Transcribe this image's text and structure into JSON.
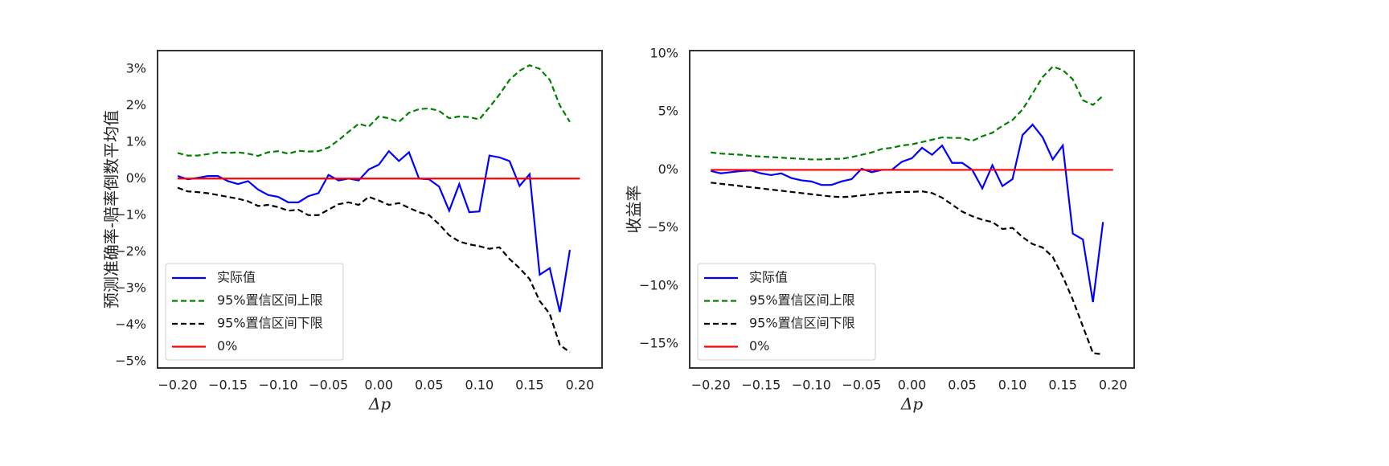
{
  "chart_data": [
    {
      "type": "line",
      "ylabel": "预测准确率-赔率倒数平均值",
      "xlabel": "Δp",
      "xlim": [
        -0.22,
        0.222
      ],
      "ylim": [
        -5.18,
        3.5
      ],
      "xticks": [
        {
          "value": -0.2,
          "label": "−0.20"
        },
        {
          "value": -0.15,
          "label": "−0.15"
        },
        {
          "value": -0.1,
          "label": "−0.10"
        },
        {
          "value": -0.05,
          "label": "−0.05"
        },
        {
          "value": 0,
          "label": "0.00"
        },
        {
          "value": 0.05,
          "label": "0.05"
        },
        {
          "value": 0.1,
          "label": "0.10"
        },
        {
          "value": 0.15,
          "label": "0.15"
        },
        {
          "value": 0.2,
          "label": "0.20"
        }
      ],
      "yticks": [
        {
          "value": 3,
          "label": "3%"
        },
        {
          "value": 2,
          "label": "2%"
        },
        {
          "value": 1,
          "label": "1%"
        },
        {
          "value": 0,
          "label": "0%"
        },
        {
          "value": -1,
          "label": "−1%"
        },
        {
          "value": -2,
          "label": "−2%"
        },
        {
          "value": -3,
          "label": "−3%"
        },
        {
          "value": -4,
          "label": "−4%"
        },
        {
          "value": -5,
          "label": "−5%"
        }
      ],
      "legend": "lower left",
      "grid": false,
      "x": [
        -0.2,
        -0.19,
        -0.18,
        -0.17,
        -0.16,
        -0.15,
        -0.14,
        -0.13,
        -0.12,
        -0.11,
        -0.1,
        -0.09,
        -0.08,
        -0.07,
        -0.06,
        -0.05,
        -0.04,
        -0.03,
        -0.02,
        -0.01,
        0,
        0.01,
        0.02,
        0.03,
        0.04,
        0.05,
        0.06,
        0.07,
        0.08,
        0.09,
        0.1,
        0.11,
        0.12,
        0.13,
        0.14,
        0.15,
        0.16,
        0.17,
        0.18,
        0.19
      ],
      "series": [
        {
          "name": "实际值",
          "color": "#0000ff",
          "linestyle": "solid",
          "values": [
            0.07,
            -0.02,
            0.02,
            0.07,
            0.07,
            -0.07,
            -0.15,
            -0.07,
            -0.3,
            -0.45,
            -0.5,
            -0.65,
            -0.65,
            -0.48,
            -0.4,
            0.1,
            -0.05,
            0.0,
            -0.05,
            0.25,
            0.38,
            0.75,
            0.48,
            0.72,
            0.0,
            -0.02,
            -0.22,
            -0.88,
            -0.15,
            -0.92,
            -0.9,
            0.63,
            0.58,
            0.48,
            -0.2,
            0.12,
            -2.63,
            -2.45,
            -3.65,
            -1.95
          ]
        },
        {
          "name": "95%置信区间上限",
          "color": "#008000",
          "linestyle": "dashed",
          "values": [
            0.7,
            0.63,
            0.63,
            0.67,
            0.72,
            0.7,
            0.72,
            0.68,
            0.62,
            0.72,
            0.75,
            0.68,
            0.76,
            0.74,
            0.75,
            0.85,
            1.05,
            1.28,
            1.5,
            1.42,
            1.7,
            1.65,
            1.55,
            1.8,
            1.9,
            1.92,
            1.85,
            1.65,
            1.7,
            1.68,
            1.62,
            1.95,
            2.3,
            2.7,
            2.95,
            3.1,
            3.0,
            2.7,
            2.0,
            1.55
          ]
        },
        {
          "name": "95%置信区间下限",
          "color": "#000000",
          "linestyle": "dashed",
          "values": [
            -0.25,
            -0.35,
            -0.37,
            -0.4,
            -0.45,
            -0.5,
            -0.55,
            -0.62,
            -0.75,
            -0.72,
            -0.78,
            -0.88,
            -0.85,
            -1.0,
            -1.0,
            -0.85,
            -0.7,
            -0.65,
            -0.72,
            -0.5,
            -0.6,
            -0.72,
            -0.67,
            -0.8,
            -0.92,
            -1.0,
            -1.25,
            -1.55,
            -1.72,
            -1.8,
            -1.85,
            -1.92,
            -1.88,
            -2.2,
            -2.45,
            -2.75,
            -3.35,
            -3.7,
            -4.55,
            -4.75
          ]
        },
        {
          "name": "0%",
          "color": "#ff0000",
          "linestyle": "solid",
          "x": [
            -0.2,
            0.2
          ],
          "values": [
            0,
            0
          ]
        }
      ]
    },
    {
      "type": "line",
      "ylabel": "收益率",
      "xlabel": "Δp",
      "xlim": [
        -0.221,
        0.221
      ],
      "ylim": [
        -17.08,
        10.28
      ],
      "xticks": [
        {
          "value": -0.2,
          "label": "−0.20"
        },
        {
          "value": -0.15,
          "label": "−0.15"
        },
        {
          "value": -0.1,
          "label": "−0.10"
        },
        {
          "value": -0.05,
          "label": "−0.05"
        },
        {
          "value": 0,
          "label": "0.00"
        },
        {
          "value": 0.05,
          "label": "0.05"
        },
        {
          "value": 0.1,
          "label": "0.10"
        },
        {
          "value": 0.15,
          "label": "0.15"
        },
        {
          "value": 0.2,
          "label": "0.20"
        }
      ],
      "yticks": [
        {
          "value": 10,
          "label": "10%"
        },
        {
          "value": 5,
          "label": "5%"
        },
        {
          "value": 0,
          "label": "0%"
        },
        {
          "value": -5,
          "label": "−5%"
        },
        {
          "value": -10,
          "label": "−10%"
        },
        {
          "value": -15,
          "label": "−15%"
        }
      ],
      "legend": "lower left",
      "grid": false,
      "x": [
        -0.2,
        -0.19,
        -0.18,
        -0.17,
        -0.16,
        -0.15,
        -0.14,
        -0.13,
        -0.12,
        -0.11,
        -0.1,
        -0.09,
        -0.08,
        -0.07,
        -0.06,
        -0.05,
        -0.04,
        -0.03,
        -0.02,
        -0.01,
        0,
        0.01,
        0.02,
        0.03,
        0.04,
        0.05,
        0.06,
        0.07,
        0.08,
        0.09,
        0.1,
        0.11,
        0.12,
        0.13,
        0.14,
        0.15,
        0.16,
        0.17,
        0.18,
        0.19
      ],
      "series": [
        {
          "name": "实际值",
          "color": "#0000ff",
          "linestyle": "solid",
          "values": [
            -0.1,
            -0.3,
            -0.2,
            -0.1,
            -0.05,
            -0.3,
            -0.45,
            -0.3,
            -0.7,
            -0.9,
            -1.0,
            -1.3,
            -1.3,
            -1.0,
            -0.8,
            0.1,
            -0.2,
            0.0,
            0.0,
            0.7,
            1.0,
            1.9,
            1.3,
            2.1,
            0.6,
            0.6,
            0.0,
            -1.6,
            0.4,
            -1.4,
            -0.8,
            3.0,
            3.9,
            2.8,
            0.9,
            2.1,
            -5.5,
            -6.0,
            -11.4,
            -4.5
          ]
        },
        {
          "name": "95%置信区间上限",
          "color": "#008000",
          "linestyle": "dashed",
          "values": [
            1.5,
            1.4,
            1.35,
            1.3,
            1.2,
            1.15,
            1.1,
            1.05,
            1.0,
            0.95,
            0.9,
            0.9,
            0.95,
            0.95,
            1.1,
            1.3,
            1.5,
            1.8,
            1.9,
            2.1,
            2.2,
            2.4,
            2.6,
            2.8,
            2.75,
            2.75,
            2.5,
            2.9,
            3.2,
            3.8,
            4.3,
            5.2,
            6.6,
            8.0,
            8.9,
            8.6,
            7.8,
            6.0,
            5.6,
            6.4
          ]
        },
        {
          "name": "95%置信区间下限",
          "color": "#000000",
          "linestyle": "dashed",
          "values": [
            -1.1,
            -1.2,
            -1.3,
            -1.4,
            -1.5,
            -1.6,
            -1.7,
            -1.8,
            -1.9,
            -2.0,
            -2.1,
            -2.2,
            -2.3,
            -2.35,
            -2.3,
            -2.2,
            -2.1,
            -2.0,
            -1.95,
            -1.9,
            -1.9,
            -1.85,
            -2.0,
            -2.4,
            -3.0,
            -3.6,
            -4.0,
            -4.3,
            -4.5,
            -5.1,
            -5.0,
            -5.8,
            -6.4,
            -6.7,
            -7.5,
            -9.2,
            -11.2,
            -13.5,
            -15.8,
            -15.9
          ]
        },
        {
          "name": "0%",
          "color": "#ff0000",
          "linestyle": "solid",
          "x": [
            -0.2,
            0.2
          ],
          "values": [
            0,
            0
          ]
        }
      ]
    }
  ]
}
